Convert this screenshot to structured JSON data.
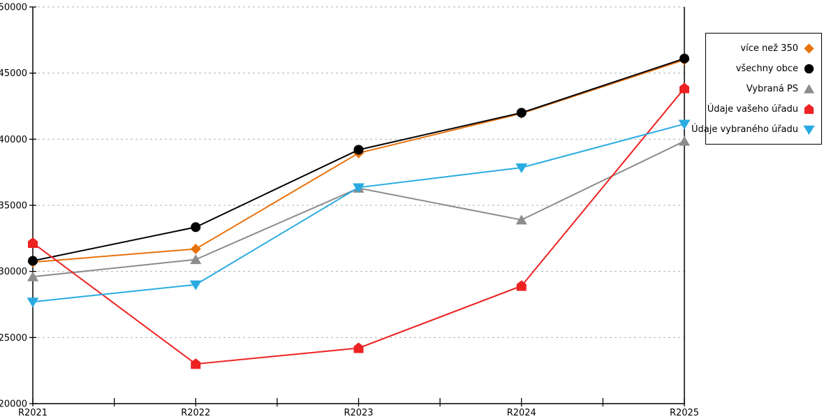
{
  "chart_data": {
    "type": "line",
    "title": "",
    "xlabel": "",
    "ylabel": "",
    "categories": [
      "R2021",
      "R2022",
      "R2023",
      "R2024",
      "R2025"
    ],
    "series": [
      {
        "name": "více než 350",
        "color": "#E8720C",
        "marker": "diamond",
        "values": [
          30700,
          31700,
          38950,
          41950,
          46000
        ]
      },
      {
        "name": "všechny obce",
        "color": "#000000",
        "marker": "circle",
        "values": [
          30800,
          33350,
          39200,
          42000,
          46100
        ]
      },
      {
        "name": "Vybraná PS",
        "color": "#8C8C8C",
        "marker": "triangle-up",
        "values": [
          29600,
          30900,
          36300,
          33900,
          39850
        ]
      },
      {
        "name": "Údaje vašeho úřadu",
        "color": "#EE2222",
        "marker": "pentagon",
        "values": [
          32150,
          23000,
          24200,
          28900,
          43850
        ]
      },
      {
        "name": "Údaje vybraného úřadu",
        "color": "#29ABE2",
        "marker": "triangle-down",
        "values": [
          27700,
          29000,
          36350,
          37850,
          41150
        ]
      }
    ],
    "ylim": [
      20000,
      50000
    ],
    "y_ticks": [
      20000,
      25000,
      30000,
      35000,
      40000,
      45000,
      50000
    ],
    "grid": "horizontal-dotted",
    "legend_position": "right"
  },
  "colors": {
    "axis": "#000000",
    "grid": "#b0b0b0",
    "background": "#ffffff"
  }
}
